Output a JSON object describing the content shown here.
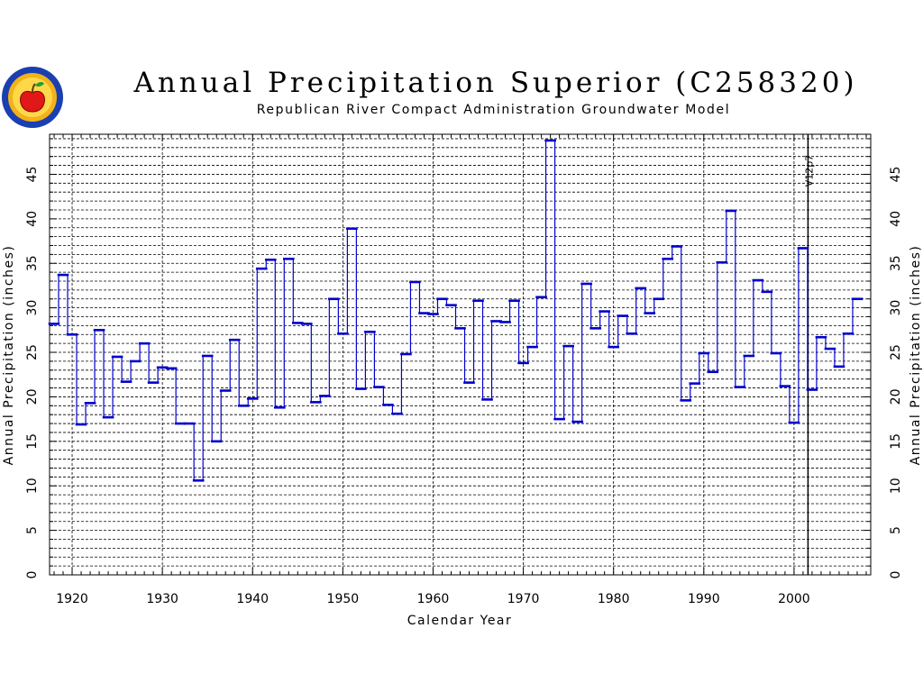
{
  "chart_data": {
    "type": "line",
    "step": true,
    "title": "Annual Precipitation Superior (C258320)",
    "subtitle": "Republican River Compact Administration Groundwater Model",
    "xlabel": "Calendar Year",
    "ylabel": "Annual Precipitation (inches)",
    "ylabel_right": "Annual Precipitation (inches)",
    "xlim": [
      1917.5,
      2008.5
    ],
    "ylim": [
      0,
      49.5
    ],
    "xticks": [
      1920,
      1930,
      1940,
      1950,
      1960,
      1970,
      1980,
      1990,
      2000
    ],
    "yticks": [
      0,
      5,
      10,
      15,
      20,
      25,
      30,
      35,
      40,
      45
    ],
    "y_minor_grid_step": 1,
    "grid": true,
    "annotation": {
      "text": "V12p7",
      "x": 2001
    },
    "series": [
      {
        "color": "#0000cc",
        "x": [
          1918,
          1919,
          1920,
          1921,
          1922,
          1923,
          1924,
          1925,
          1926,
          1927,
          1928,
          1929,
          1930,
          1931,
          1932,
          1933,
          1934,
          1935,
          1936,
          1937,
          1938,
          1939,
          1940,
          1941,
          1942,
          1943,
          1944,
          1945,
          1946,
          1947,
          1948,
          1949,
          1950,
          1951,
          1952,
          1953,
          1954,
          1955,
          1956,
          1957,
          1958,
          1959,
          1960,
          1961,
          1962,
          1963,
          1964,
          1965,
          1966,
          1967,
          1968,
          1969,
          1970,
          1971,
          1972,
          1973,
          1974,
          1975,
          1976,
          1977,
          1978,
          1979,
          1980,
          1981,
          1982,
          1983,
          1984,
          1985,
          1986,
          1987,
          1988,
          1989,
          1990,
          1991,
          1992,
          1993,
          1994,
          1995,
          1996,
          1997,
          1998,
          1999,
          2000,
          2001,
          2002,
          2003,
          2004,
          2005,
          2006,
          2007
        ],
        "values": [
          28.2,
          33.7,
          27.0,
          16.9,
          19.3,
          27.5,
          17.7,
          24.5,
          21.7,
          24.0,
          26.0,
          21.6,
          23.3,
          23.2,
          17.0,
          17.0,
          10.6,
          24.6,
          15.0,
          20.7,
          26.4,
          19.0,
          19.8,
          34.4,
          35.4,
          18.8,
          35.5,
          28.3,
          28.2,
          19.4,
          20.1,
          31.0,
          27.1,
          38.9,
          20.9,
          27.3,
          21.1,
          19.1,
          18.1,
          24.8,
          32.9,
          29.4,
          29.3,
          31.0,
          30.3,
          27.7,
          21.6,
          30.8,
          19.7,
          28.5,
          28.4,
          30.8,
          23.8,
          25.6,
          31.2,
          48.8,
          17.5,
          25.7,
          17.2,
          32.7,
          27.7,
          29.6,
          25.6,
          29.1,
          27.1,
          32.2,
          29.4,
          31.0,
          35.5,
          36.9,
          19.6,
          21.5,
          24.9,
          22.8,
          35.1,
          40.9,
          21.1,
          24.6,
          33.1,
          31.8,
          24.9,
          21.2,
          17.1,
          36.7,
          20.8,
          26.7,
          25.4,
          23.4,
          27.1,
          31.0
        ]
      }
    ]
  }
}
